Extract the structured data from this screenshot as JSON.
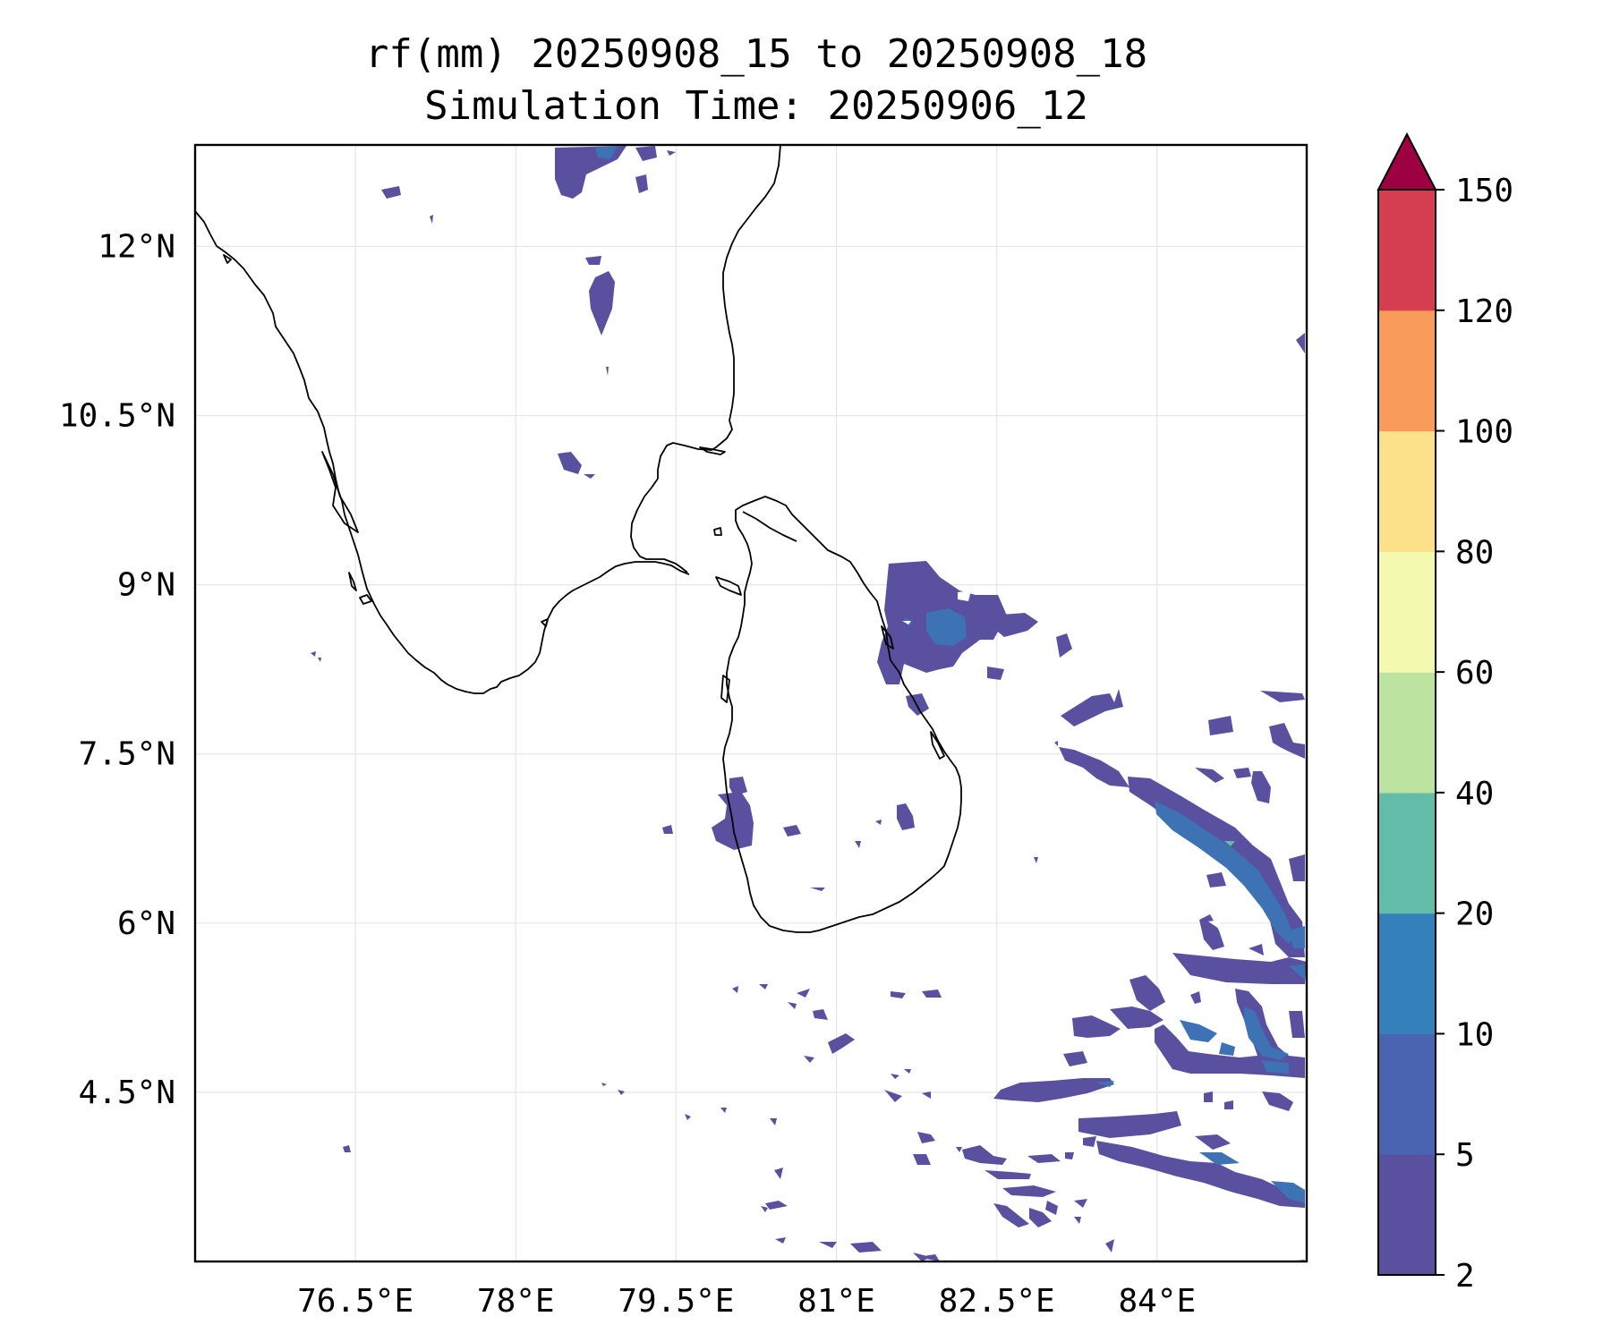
{
  "title_line1": "rf(mm) 20250908_15 to 20250908_18",
  "title_line2": "Simulation Time: 20250906_12",
  "map": {
    "lon_range": [
      75.0,
      85.4
    ],
    "lat_range": [
      3.0,
      12.9
    ],
    "lon_ticks": [
      76.5,
      78,
      79.5,
      81,
      82.5,
      84
    ],
    "lon_tick_labels": [
      "76.5°E",
      "78°E",
      "79.5°E",
      "81°E",
      "82.5°E",
      "84°E"
    ],
    "lat_ticks": [
      12,
      10.5,
      9,
      7.5,
      6,
      4.5
    ],
    "lat_tick_labels": [
      "12°N",
      "10.5°N",
      "9°N",
      "7.5°N",
      "6°N",
      "4.5°N"
    ],
    "gridlines": true
  },
  "colorbar": {
    "levels": [
      2,
      5,
      10,
      20,
      40,
      60,
      80,
      100,
      120,
      150
    ],
    "tick_labels": [
      "2",
      "5",
      "10",
      "20",
      "40",
      "60",
      "80",
      "100",
      "120",
      "150"
    ],
    "colors": [
      "#5a50a0",
      "#4a64b2",
      "#3580ba",
      "#62bca8",
      "#bde3a1",
      "#f3f9ae",
      "#fce08a",
      "#f99c5b",
      "#d53e4f"
    ],
    "extend_color": "#9e0142",
    "extend": "max"
  },
  "chart_data": {
    "type": "heatmap",
    "title": "rf(mm) 20250908_15 to 20250908_18",
    "subtitle": "Simulation Time: 20250906_12",
    "variable": "rf(mm)",
    "xlim": [
      75.0,
      85.4
    ],
    "ylim": [
      3.0,
      12.9
    ],
    "rain_cells": [
      {
        "lon": 81.4,
        "lat": 8.7,
        "mm": 7
      },
      {
        "lon": 80.45,
        "lat": 6.85,
        "mm": 4
      },
      {
        "lon": 84.5,
        "lat": 6.6,
        "mm": 14
      },
      {
        "lon": 84.4,
        "lat": 5.8,
        "mm": 12
      },
      {
        "lon": 84.2,
        "lat": 4.95,
        "mm": 12
      },
      {
        "lon": 83.8,
        "lat": 3.75,
        "mm": 8
      },
      {
        "lon": 78.4,
        "lat": 12.7,
        "mm": 5
      }
    ]
  }
}
